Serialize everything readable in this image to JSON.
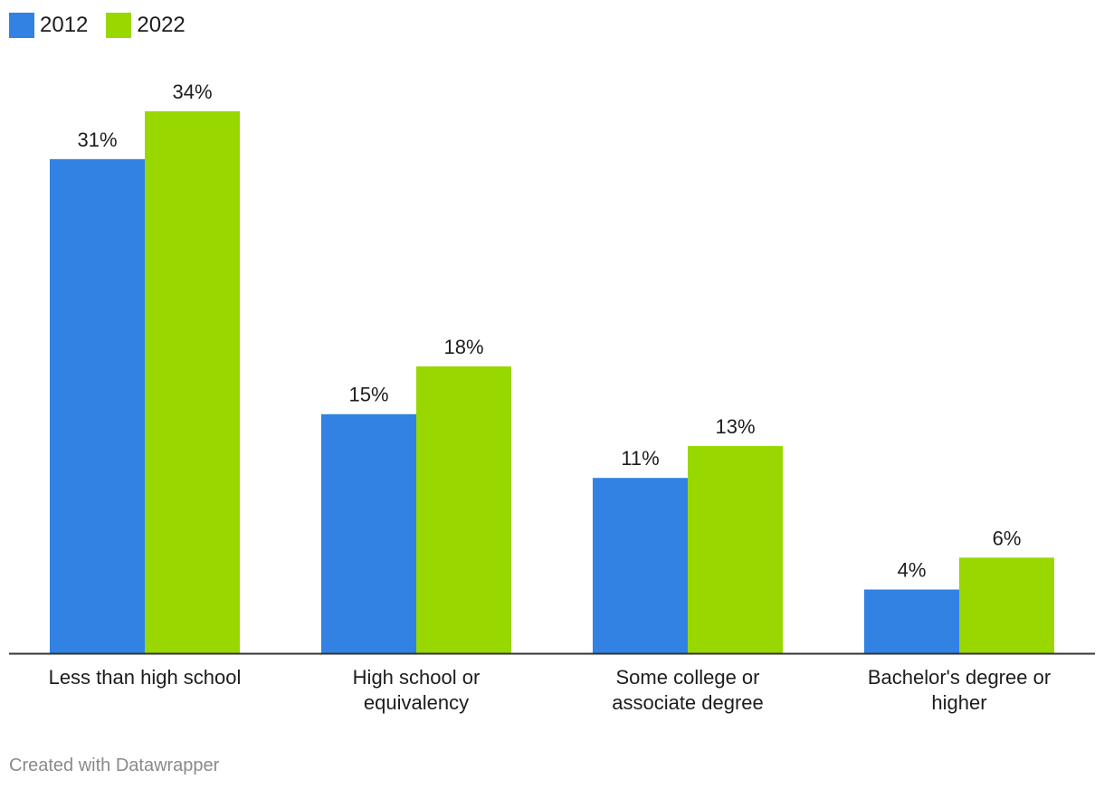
{
  "legend": [
    {
      "label": "2012",
      "color": "#3182e3"
    },
    {
      "label": "2022",
      "color": "#98d800"
    }
  ],
  "chart_data": {
    "type": "bar",
    "categories": [
      [
        "Less than high school"
      ],
      [
        "High school or",
        "equivalency"
      ],
      [
        "Some college or",
        "associate degree"
      ],
      [
        "Bachelor's degree or",
        "higher"
      ]
    ],
    "series": [
      {
        "name": "2012",
        "color": "#3182e3",
        "values": [
          31,
          15,
          11,
          4
        ],
        "labels": [
          "31%",
          "15%",
          "11%",
          "4%"
        ]
      },
      {
        "name": "2022",
        "color": "#98d800",
        "values": [
          34,
          18,
          13,
          6
        ],
        "labels": [
          "34%",
          "18%",
          "13%",
          "6%"
        ]
      }
    ],
    "value_unit": "%",
    "ylim": [
      0,
      34
    ],
    "grid": false,
    "legend_position": "top-left",
    "title": "",
    "xlabel": "",
    "ylabel": ""
  },
  "footer": {
    "credit": "Created with Datawrapper"
  }
}
